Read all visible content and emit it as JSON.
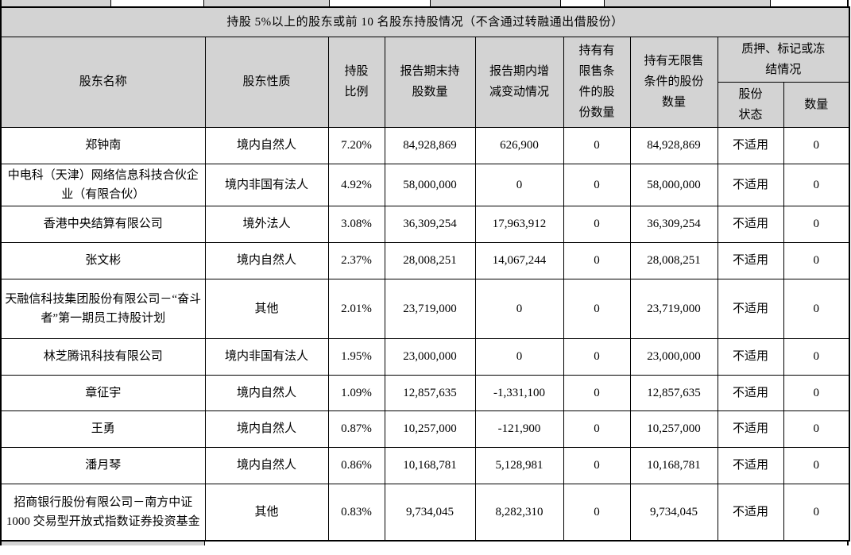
{
  "page": {
    "section_title": "持股 5%以上的股东或前 10 名股东持股情况（不含通过转融通出借股份）"
  },
  "table": {
    "headers": {
      "name": "股东名称",
      "nature": "股东性质",
      "ratio": "持股\n比例",
      "shares_end": "报告期末持\n股数量",
      "change": "报告期内增\n减变动情况",
      "restricted": "持有有\n限售条\n件的股\n份数量",
      "unrestricted": "持有无限售\n条件的股份\n数量",
      "pledge_group": "质押、标记或冻\n结情况",
      "pledge_status": "股份\n状态",
      "pledge_qty": "数量"
    },
    "rows": [
      {
        "name": "郑钟南",
        "nature": "境内自然人",
        "ratio": "7.20%",
        "shares_end": "84,928,869",
        "change": "626,900",
        "restricted": "0",
        "unrestricted": "84,928,869",
        "pledge_status": "不适用",
        "pledge_qty": "0"
      },
      {
        "name": "中电科（天津）网络信息科技合伙企业（有限合伙）",
        "nature": "境内非国有法人",
        "ratio": "4.92%",
        "shares_end": "58,000,000",
        "change": "0",
        "restricted": "0",
        "unrestricted": "58,000,000",
        "pledge_status": "不适用",
        "pledge_qty": "0"
      },
      {
        "name": "香港中央结算有限公司",
        "nature": "境外法人",
        "ratio": "3.08%",
        "shares_end": "36,309,254",
        "change": "17,963,912",
        "restricted": "0",
        "unrestricted": "36,309,254",
        "pledge_status": "不适用",
        "pledge_qty": "0"
      },
      {
        "name": "张文彬",
        "nature": "境内自然人",
        "ratio": "2.37%",
        "shares_end": "28,008,251",
        "change": "14,067,244",
        "restricted": "0",
        "unrestricted": "28,008,251",
        "pledge_status": "不适用",
        "pledge_qty": "0"
      },
      {
        "name": "天融信科技集团股份有限公司－“奋斗者”第一期员工持股计划",
        "nature": "其他",
        "ratio": "2.01%",
        "shares_end": "23,719,000",
        "change": "0",
        "restricted": "0",
        "unrestricted": "23,719,000",
        "pledge_status": "不适用",
        "pledge_qty": "0"
      },
      {
        "name": "林芝腾讯科技有限公司",
        "nature": "境内非国有法人",
        "ratio": "1.95%",
        "shares_end": "23,000,000",
        "change": "0",
        "restricted": "0",
        "unrestricted": "23,000,000",
        "pledge_status": "不适用",
        "pledge_qty": "0"
      },
      {
        "name": "章征宇",
        "nature": "境内自然人",
        "ratio": "1.09%",
        "shares_end": "12,857,635",
        "change": "-1,331,100",
        "restricted": "0",
        "unrestricted": "12,857,635",
        "pledge_status": "不适用",
        "pledge_qty": "0"
      },
      {
        "name": "王勇",
        "nature": "境内自然人",
        "ratio": "0.87%",
        "shares_end": "10,257,000",
        "change": "-121,900",
        "restricted": "0",
        "unrestricted": "10,257,000",
        "pledge_status": "不适用",
        "pledge_qty": "0"
      },
      {
        "name": "潘月琴",
        "nature": "境内自然人",
        "ratio": "0.86%",
        "shares_end": "10,168,781",
        "change": "5,128,981",
        "restricted": "0",
        "unrestricted": "10,168,781",
        "pledge_status": "不适用",
        "pledge_qty": "0"
      },
      {
        "name": "招商银行股份有限公司－南方中证 1000 交易型开放式指数证券投资基金",
        "nature": "其他",
        "ratio": "0.83%",
        "shares_end": "9,734,045",
        "change": "8,282,310",
        "restricted": "0",
        "unrestricted": "9,734,045",
        "pledge_status": "不适用",
        "pledge_qty": "0"
      }
    ]
  },
  "colors": {
    "header_bg": "#d3d3d3",
    "border": "#000000"
  }
}
